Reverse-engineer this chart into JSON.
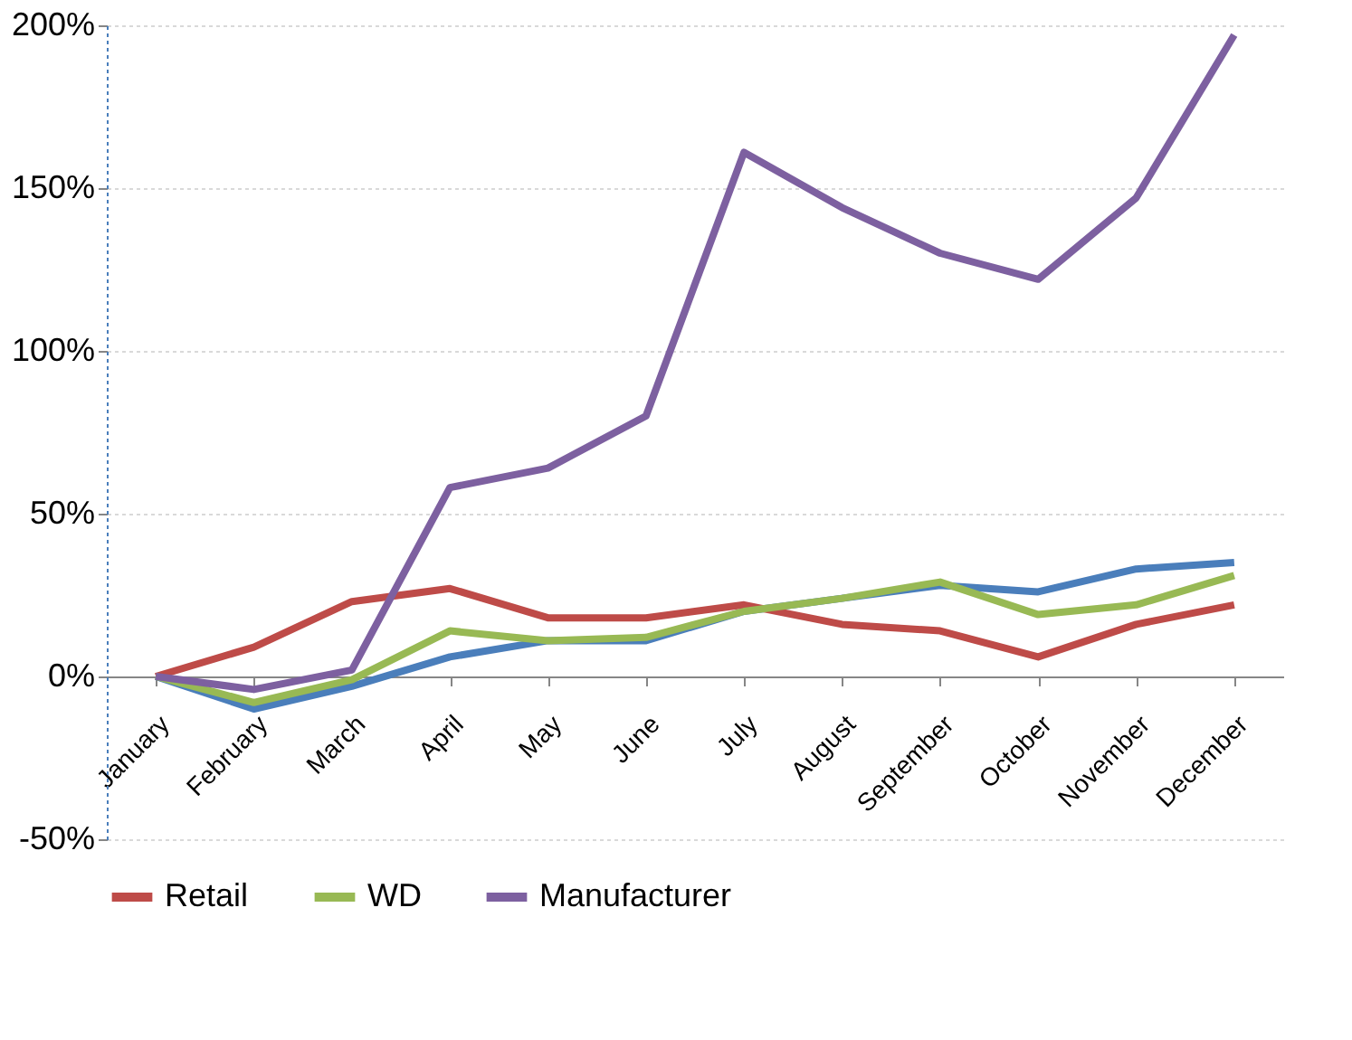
{
  "chart_data": {
    "type": "line",
    "categories": [
      "January",
      "February",
      "March",
      "April",
      "May",
      "June",
      "July",
      "August",
      "September",
      "October",
      "November",
      "December"
    ],
    "series": [
      {
        "color": "#4a7ebb",
        "values": [
          0,
          -10,
          -3,
          6,
          11,
          11,
          20,
          24,
          28,
          26,
          33,
          35
        ]
      },
      {
        "name": "Retail",
        "color": "#be4b48",
        "values": [
          0,
          9,
          23,
          27,
          18,
          18,
          22,
          16,
          14,
          6,
          16,
          22
        ]
      },
      {
        "name": "WD",
        "color": "#98b954",
        "values": [
          0,
          -8,
          -1,
          14,
          11,
          12,
          20,
          24,
          29,
          19,
          22,
          31
        ]
      },
      {
        "name": "Manufacturer",
        "color": "#7d60a0",
        "values": [
          0,
          -4,
          2,
          58,
          64,
          80,
          161,
          144,
          130,
          122,
          147,
          197
        ]
      }
    ],
    "ylim": [
      -50,
      200
    ],
    "yticks": [
      {
        "value": -50,
        "label": "-50%"
      },
      {
        "value": 0,
        "label": "0%"
      },
      {
        "value": 50,
        "label": "50%"
      },
      {
        "value": 100,
        "label": "100%"
      },
      {
        "value": 150,
        "label": "150%"
      },
      {
        "value": 200,
        "label": "200%"
      }
    ],
    "grid": "y",
    "legend": "bottom",
    "marker": "none",
    "line_style": "solid"
  }
}
